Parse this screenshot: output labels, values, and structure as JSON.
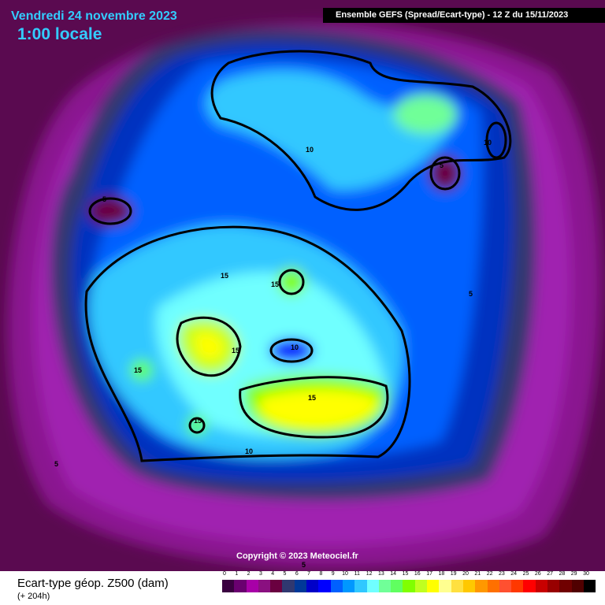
{
  "header": {
    "date": "Vendredi 24 novembre 2023",
    "time": "1:00 locale",
    "model": "Ensemble GEFS  (Spread/Ecart-type) - 12 Z du 15/11/2023"
  },
  "copyright": "Copyright © 2023 Meteociel.fr",
  "legend": {
    "title": "Ecart-type géop. Z500 (dam)",
    "lead": "(+ 204h)",
    "ticks": [
      "0",
      "1",
      "2",
      "3",
      "4",
      "5",
      "6",
      "7",
      "8",
      "9",
      "10",
      "11",
      "12",
      "13",
      "14",
      "15",
      "16",
      "17",
      "18",
      "19",
      "20",
      "21",
      "22",
      "23",
      "24",
      "25",
      "26",
      "27",
      "28",
      "29",
      "30"
    ],
    "colors": [
      "#3a0040",
      "#6a0070",
      "#a800a8",
      "#8a1080",
      "#6a0040",
      "#303870",
      "#003898",
      "#0000c8",
      "#0000ff",
      "#0060ff",
      "#0098ff",
      "#30c8ff",
      "#70ffff",
      "#70ff98",
      "#60ff60",
      "#80ff00",
      "#c0ff20",
      "#ffff00",
      "#ffff90",
      "#ffe040",
      "#ffc800",
      "#ff9800",
      "#ff7000",
      "#ff5030",
      "#ff3800",
      "#ff0000",
      "#c80000",
      "#980000",
      "#700000",
      "#500000",
      "#000000"
    ]
  },
  "contour_labels": [
    {
      "value": "5",
      "where": "north-america"
    },
    {
      "value": "10",
      "where": "north-pacific"
    },
    {
      "value": "10",
      "where": "east-asia"
    },
    {
      "value": "5",
      "where": "siberia"
    },
    {
      "value": "5",
      "where": "west-pacific"
    },
    {
      "value": "15",
      "where": "canada"
    },
    {
      "value": "15",
      "where": "arctic"
    },
    {
      "value": "10",
      "where": "arctic-center"
    },
    {
      "value": "15",
      "where": "greenland"
    },
    {
      "value": "15",
      "where": "hudson"
    },
    {
      "value": "15",
      "where": "europe"
    },
    {
      "value": "15",
      "where": "atlantic"
    },
    {
      "value": "10",
      "where": "africa"
    },
    {
      "value": "5",
      "where": "south-atlantic"
    },
    {
      "value": "5",
      "where": "bottom"
    }
  ]
}
